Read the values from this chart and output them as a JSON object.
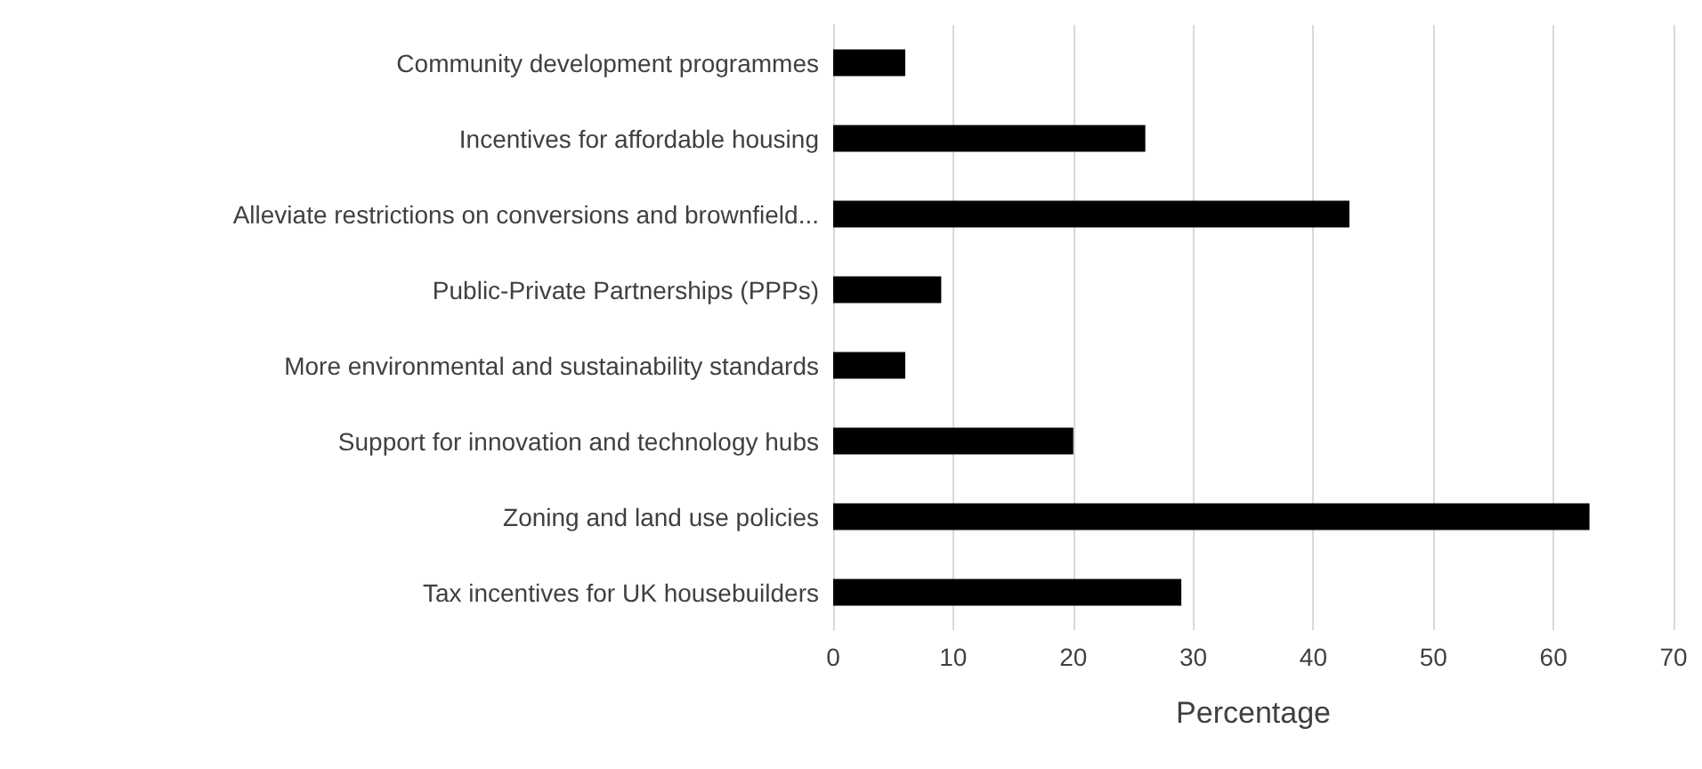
{
  "chart_data": {
    "type": "bar",
    "orientation": "horizontal",
    "xlabel": "Percentage",
    "categories": [
      "Community development programmes",
      "Incentives for affordable housing",
      "Alleviate restrictions on conversions and brownfield...",
      "Public-Private Partnerships (PPPs)",
      "More environmental and sustainability standards",
      "Support for innovation and technology hubs",
      "Zoning and land use policies",
      "Tax incentives for UK housebuilders"
    ],
    "values": [
      6,
      26,
      43,
      9,
      6,
      20,
      63,
      29
    ],
    "color": "#000000",
    "xlim": [
      0,
      70
    ],
    "xticks": [
      0,
      10,
      20,
      30,
      40,
      50,
      60,
      70
    ],
    "grid": "x"
  }
}
